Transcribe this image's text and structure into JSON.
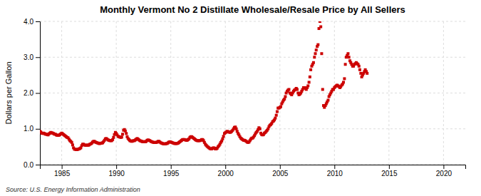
{
  "chart_data": {
    "type": "scatter",
    "title": "Monthly Vermont No 2 Distillate Wholesale/Resale Price by All Sellers",
    "y_label": "Dollars per Gallon",
    "annotations": [
      "Source: U.S. Energy Information Administration"
    ],
    "color": "#cc0000",
    "marker": "square",
    "grid": true,
    "xlim": [
      1983,
      2022
    ],
    "ylim": [
      0.0,
      4.0
    ],
    "xticks": [
      1985,
      1990,
      1995,
      2000,
      2005,
      2010,
      2015,
      2020
    ],
    "yticks": [
      {
        "value": 0.0,
        "label": "0.0"
      },
      {
        "value": 1.0,
        "label": "1.0"
      },
      {
        "value": 2.0,
        "label": "2.0"
      },
      {
        "value": 3.0,
        "label": "3.0"
      },
      {
        "value": 4.0,
        "label": "4.0"
      }
    ],
    "x": [
      1983.0,
      1983.08,
      1983.17,
      1983.25,
      1983.33,
      1983.42,
      1983.5,
      1983.58,
      1983.67,
      1983.75,
      1983.83,
      1983.92,
      1984.0,
      1984.08,
      1984.17,
      1984.25,
      1984.33,
      1984.42,
      1984.5,
      1984.58,
      1984.67,
      1984.75,
      1984.83,
      1984.92,
      1985.0,
      1985.08,
      1985.17,
      1985.25,
      1985.33,
      1985.42,
      1985.5,
      1985.58,
      1985.67,
      1985.75,
      1985.83,
      1985.92,
      1986.0,
      1986.08,
      1986.17,
      1986.25,
      1986.33,
      1986.42,
      1986.5,
      1986.58,
      1986.67,
      1986.75,
      1986.83,
      1986.92,
      1987.0,
      1987.08,
      1987.17,
      1987.25,
      1987.33,
      1987.42,
      1987.5,
      1987.58,
      1987.67,
      1987.75,
      1987.83,
      1987.92,
      1988.0,
      1988.08,
      1988.17,
      1988.25,
      1988.33,
      1988.42,
      1988.5,
      1988.58,
      1988.67,
      1988.75,
      1988.83,
      1988.92,
      1989.0,
      1989.08,
      1989.17,
      1989.25,
      1989.33,
      1989.42,
      1989.5,
      1989.58,
      1989.67,
      1989.75,
      1989.83,
      1989.92,
      1990.0,
      1990.08,
      1990.17,
      1990.25,
      1990.33,
      1990.42,
      1990.5,
      1990.58,
      1990.67,
      1990.75,
      1990.83,
      1990.92,
      1991.0,
      1991.08,
      1991.17,
      1991.25,
      1991.33,
      1991.42,
      1991.5,
      1991.58,
      1991.67,
      1991.75,
      1991.83,
      1991.92,
      1992.0,
      1992.08,
      1992.17,
      1992.25,
      1992.33,
      1992.42,
      1992.5,
      1992.58,
      1992.67,
      1992.75,
      1992.83,
      1992.92,
      1993.0,
      1993.08,
      1993.17,
      1993.25,
      1993.33,
      1993.42,
      1993.5,
      1993.58,
      1993.67,
      1993.75,
      1993.83,
      1993.92,
      1994.0,
      1994.08,
      1994.17,
      1994.25,
      1994.33,
      1994.42,
      1994.5,
      1994.58,
      1994.67,
      1994.75,
      1994.83,
      1994.92,
      1995.0,
      1995.08,
      1995.17,
      1995.25,
      1995.33,
      1995.42,
      1995.5,
      1995.58,
      1995.67,
      1995.75,
      1995.83,
      1995.92,
      1996.0,
      1996.08,
      1996.17,
      1996.25,
      1996.33,
      1996.42,
      1996.5,
      1996.58,
      1996.67,
      1996.75,
      1996.83,
      1996.92,
      1997.0,
      1997.08,
      1997.17,
      1997.25,
      1997.33,
      1997.42,
      1997.5,
      1997.58,
      1997.67,
      1997.75,
      1997.83,
      1997.92,
      1998.0,
      1998.08,
      1998.17,
      1998.25,
      1998.33,
      1998.42,
      1998.5,
      1998.58,
      1998.67,
      1998.75,
      1998.83,
      1998.92,
      1999.0,
      1999.08,
      1999.17,
      1999.25,
      1999.33,
      1999.42,
      1999.5,
      1999.58,
      1999.67,
      1999.75,
      1999.83,
      1999.92,
      2000.0,
      2000.08,
      2000.17,
      2000.25,
      2000.33,
      2000.42,
      2000.5,
      2000.58,
      2000.67,
      2000.75,
      2000.83,
      2000.92,
      2001.0,
      2001.08,
      2001.17,
      2001.25,
      2001.33,
      2001.42,
      2001.5,
      2001.58,
      2001.67,
      2001.75,
      2001.83,
      2001.92,
      2002.0,
      2002.08,
      2002.17,
      2002.25,
      2002.33,
      2002.42,
      2002.5,
      2002.58,
      2002.67,
      2002.75,
      2002.83,
      2002.92,
      2003.0,
      2003.08,
      2003.17,
      2003.25,
      2003.33,
      2003.42,
      2003.5,
      2003.58,
      2003.67,
      2003.75,
      2003.83,
      2003.92,
      2004.0,
      2004.08,
      2004.17,
      2004.25,
      2004.33,
      2004.42,
      2004.5,
      2004.58,
      2004.67,
      2004.75,
      2004.83,
      2004.92,
      2005.0,
      2005.08,
      2005.17,
      2005.25,
      2005.33,
      2005.42,
      2005.5,
      2005.58,
      2005.67,
      2005.75,
      2005.83,
      2005.92,
      2006.0,
      2006.08,
      2006.17,
      2006.25,
      2006.33,
      2006.42,
      2006.5,
      2006.58,
      2006.67,
      2006.75,
      2006.83,
      2006.92,
      2007.0,
      2007.08,
      2007.17,
      2007.25,
      2007.33,
      2007.42,
      2007.5,
      2007.58,
      2007.67,
      2007.75,
      2007.83,
      2007.92,
      2008.0,
      2008.08,
      2008.17,
      2008.25,
      2008.33,
      2008.42,
      2008.5,
      2008.58,
      2008.67,
      2008.75,
      2008.83,
      2008.92,
      2009.0,
      2009.08,
      2009.17,
      2009.25,
      2009.33,
      2009.42,
      2009.5,
      2009.58,
      2009.67,
      2009.75,
      2009.83,
      2009.92,
      2010.0,
      2010.08,
      2010.17,
      2010.25,
      2010.33,
      2010.42,
      2010.5,
      2010.58,
      2010.67,
      2010.75,
      2010.83,
      2010.92,
      2011.0,
      2011.08,
      2011.17,
      2011.25,
      2011.33,
      2011.42,
      2011.5,
      2011.58,
      2011.67,
      2011.75,
      2011.83,
      2011.92,
      2012.0,
      2012.08,
      2012.17,
      2012.25,
      2012.33,
      2012.42,
      2012.5,
      2012.58,
      2012.67,
      2012.75,
      2012.83,
      2012.92,
      2013.0
    ],
    "values": [
      0.93,
      0.91,
      0.88,
      0.87,
      0.88,
      0.87,
      0.85,
      0.85,
      0.84,
      0.83,
      0.86,
      0.88,
      0.9,
      0.89,
      0.88,
      0.87,
      0.85,
      0.85,
      0.83,
      0.82,
      0.82,
      0.82,
      0.84,
      0.86,
      0.88,
      0.86,
      0.84,
      0.82,
      0.8,
      0.78,
      0.76,
      0.75,
      0.71,
      0.67,
      0.65,
      0.62,
      0.55,
      0.47,
      0.43,
      0.43,
      0.42,
      0.42,
      0.43,
      0.44,
      0.45,
      0.47,
      0.53,
      0.57,
      0.57,
      0.55,
      0.54,
      0.54,
      0.55,
      0.54,
      0.55,
      0.57,
      0.58,
      0.6,
      0.63,
      0.65,
      0.65,
      0.63,
      0.62,
      0.61,
      0.6,
      0.59,
      0.59,
      0.6,
      0.6,
      0.61,
      0.64,
      0.68,
      0.72,
      0.73,
      0.71,
      0.69,
      0.68,
      0.67,
      0.67,
      0.67,
      0.7,
      0.76,
      0.84,
      0.9,
      0.87,
      0.83,
      0.79,
      0.78,
      0.77,
      0.76,
      0.77,
      0.85,
      0.96,
      0.98,
      0.94,
      0.87,
      0.78,
      0.73,
      0.7,
      0.67,
      0.66,
      0.65,
      0.66,
      0.67,
      0.67,
      0.69,
      0.71,
      0.73,
      0.71,
      0.69,
      0.67,
      0.66,
      0.65,
      0.64,
      0.64,
      0.64,
      0.64,
      0.65,
      0.68,
      0.69,
      0.68,
      0.67,
      0.65,
      0.64,
      0.63,
      0.62,
      0.62,
      0.62,
      0.62,
      0.63,
      0.65,
      0.65,
      0.63,
      0.61,
      0.6,
      0.59,
      0.58,
      0.58,
      0.58,
      0.59,
      0.59,
      0.61,
      0.63,
      0.64,
      0.63,
      0.62,
      0.61,
      0.6,
      0.59,
      0.59,
      0.59,
      0.59,
      0.6,
      0.62,
      0.64,
      0.66,
      0.68,
      0.7,
      0.7,
      0.7,
      0.69,
      0.68,
      0.68,
      0.7,
      0.72,
      0.76,
      0.78,
      0.78,
      0.76,
      0.74,
      0.72,
      0.7,
      0.68,
      0.67,
      0.67,
      0.67,
      0.67,
      0.68,
      0.7,
      0.7,
      0.67,
      0.62,
      0.57,
      0.54,
      0.51,
      0.49,
      0.47,
      0.45,
      0.44,
      0.44,
      0.46,
      0.47,
      0.46,
      0.44,
      0.44,
      0.46,
      0.5,
      0.53,
      0.57,
      0.62,
      0.66,
      0.72,
      0.79,
      0.87,
      0.89,
      0.91,
      0.93,
      0.92,
      0.91,
      0.9,
      0.91,
      0.93,
      0.96,
      1.0,
      1.04,
      1.05,
      1.0,
      0.93,
      0.87,
      0.83,
      0.78,
      0.74,
      0.72,
      0.7,
      0.68,
      0.68,
      0.67,
      0.65,
      0.63,
      0.62,
      0.63,
      0.67,
      0.71,
      0.74,
      0.74,
      0.77,
      0.81,
      0.86,
      0.9,
      0.93,
      0.98,
      1.03,
      1.0,
      0.88,
      0.84,
      0.83,
      0.84,
      0.88,
      0.9,
      0.93,
      0.96,
      1.0,
      1.06,
      1.1,
      1.12,
      1.15,
      1.2,
      1.22,
      1.25,
      1.3,
      1.38,
      1.48,
      1.58,
      1.58,
      1.6,
      1.62,
      1.7,
      1.75,
      1.8,
      1.83,
      1.9,
      2.0,
      2.05,
      2.08,
      2.1,
      2.0,
      1.98,
      1.95,
      2.0,
      2.05,
      2.08,
      2.1,
      2.13,
      2.1,
      2.0,
      1.95,
      1.97,
      2.0,
      2.05,
      2.1,
      2.15,
      2.15,
      2.13,
      2.1,
      2.15,
      2.2,
      2.3,
      2.45,
      2.65,
      2.75,
      2.8,
      2.85,
      3.0,
      3.1,
      3.2,
      3.3,
      3.35,
      3.8,
      4.0,
      3.85,
      3.1,
      2.1,
      1.65,
      1.6,
      1.65,
      1.7,
      1.75,
      1.8,
      1.9,
      1.95,
      2.0,
      2.05,
      2.1,
      2.1,
      2.15,
      2.18,
      2.2,
      2.22,
      2.2,
      2.18,
      2.15,
      2.18,
      2.22,
      2.25,
      2.3,
      2.4,
      2.8,
      3.0,
      3.05,
      3.1,
      3.0,
      2.9,
      2.85,
      2.8,
      2.75,
      2.75,
      2.8,
      2.82,
      2.85,
      2.82,
      2.8,
      2.75,
      2.65,
      2.55,
      2.45,
      2.5,
      2.55,
      2.6,
      2.65,
      2.6,
      2.55
    ]
  }
}
